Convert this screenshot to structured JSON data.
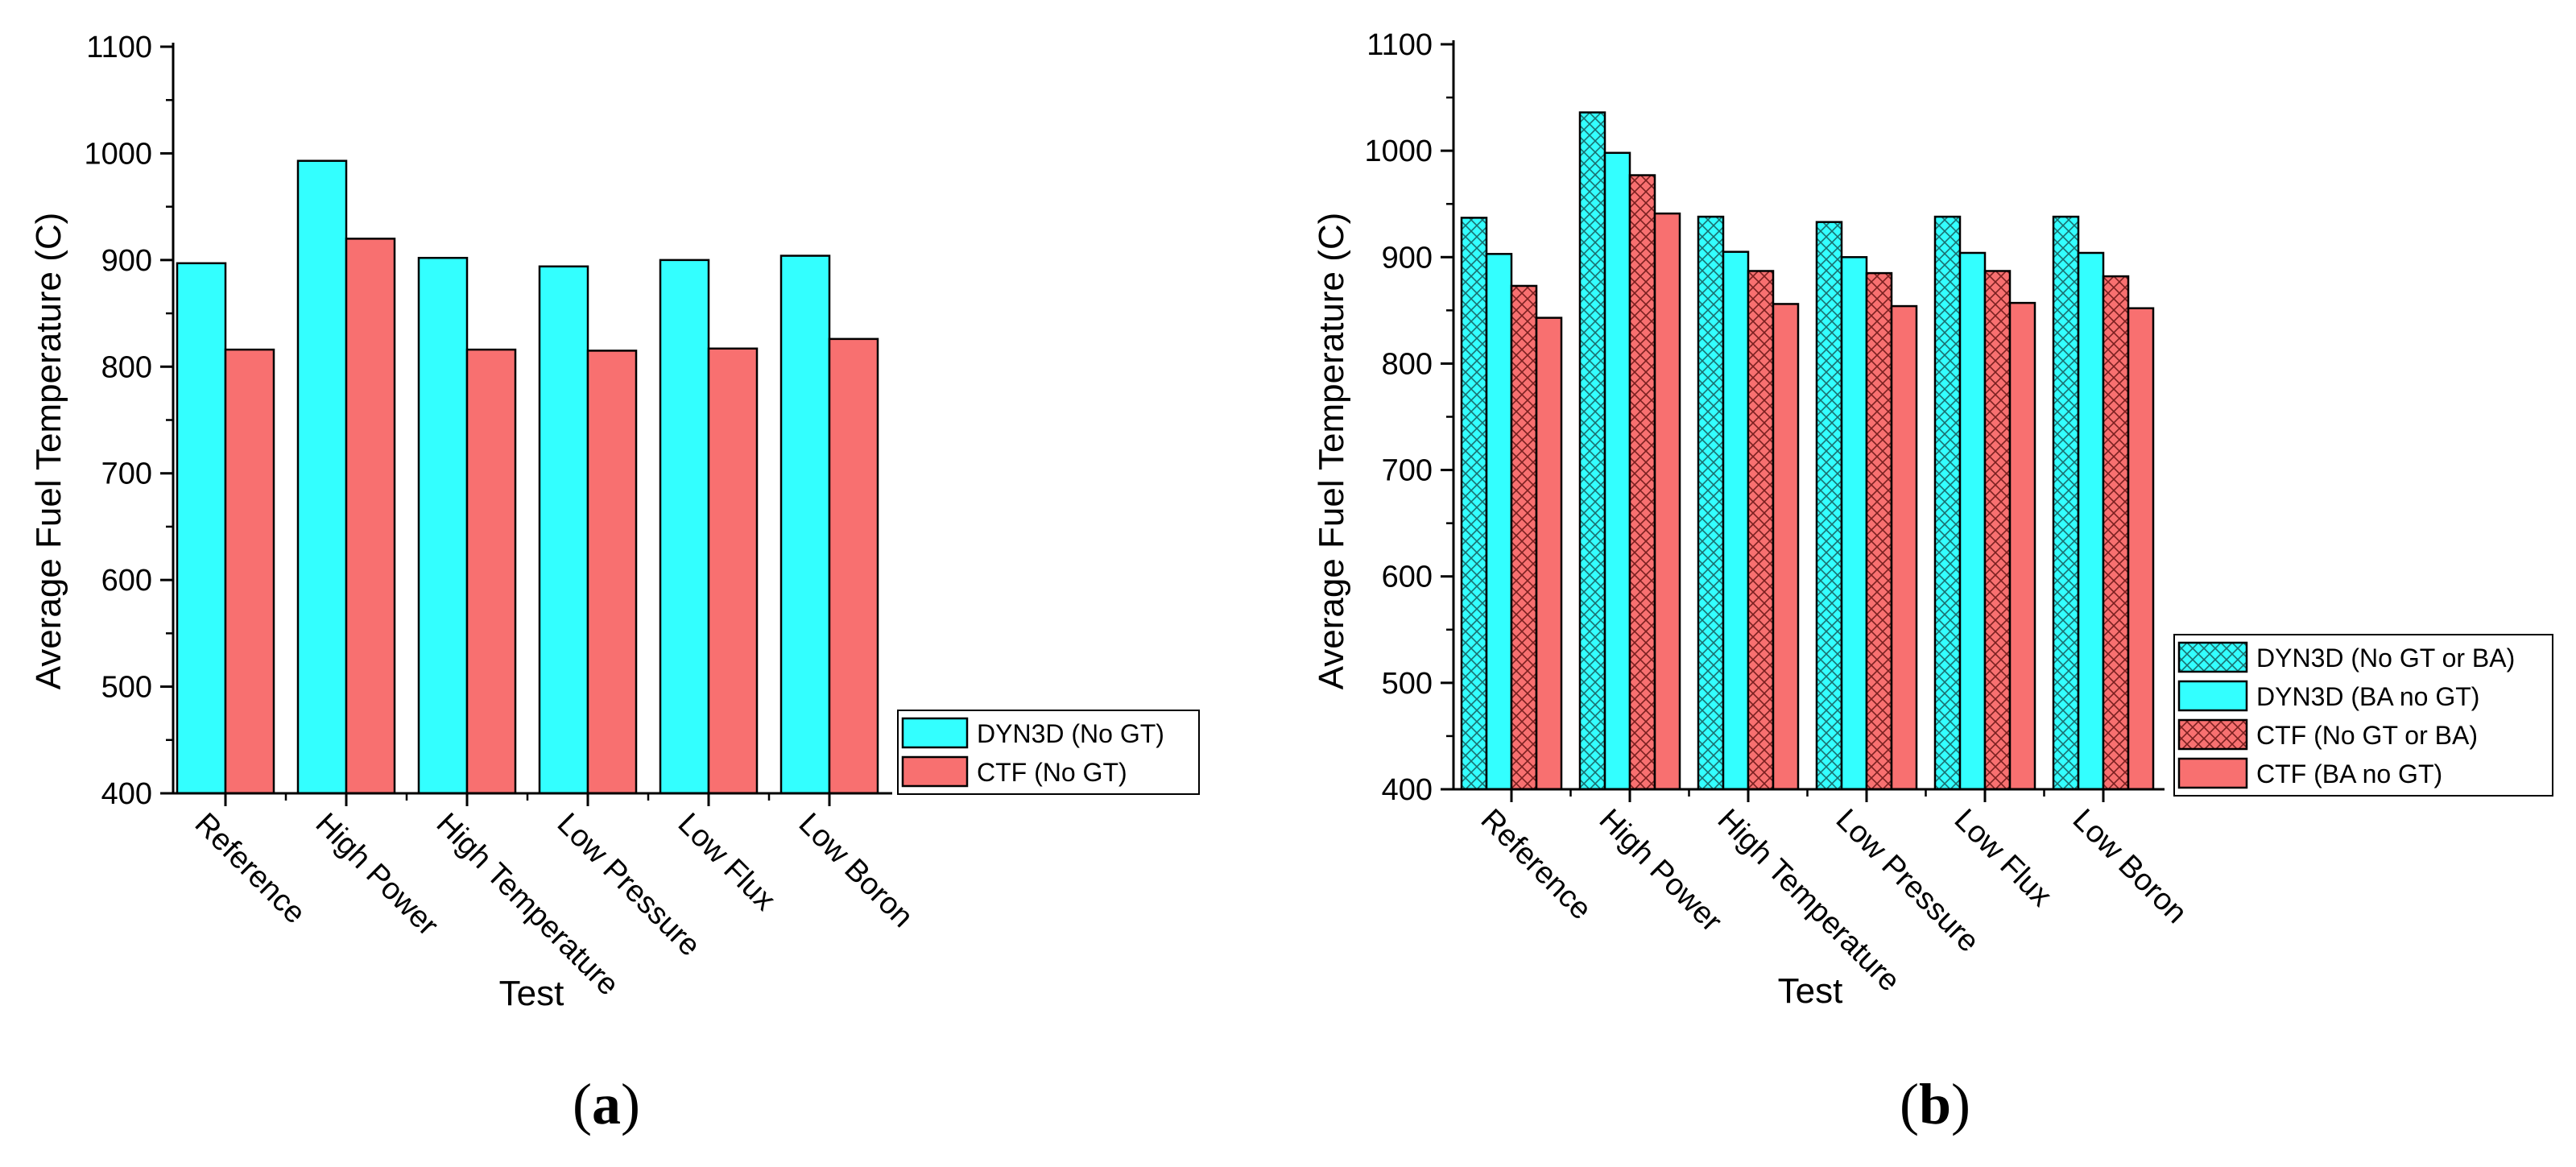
{
  "chart_data": [
    {
      "type": "bar",
      "panel": "a",
      "panel_label": "a",
      "xlabel": "Test",
      "ylabel": "Average Fuel Temperature (C)",
      "ylim": [
        400,
        1100
      ],
      "yticks": [
        400,
        500,
        600,
        700,
        800,
        900,
        1000,
        1100
      ],
      "categories": [
        "Reference",
        "High Power",
        "High Temperature",
        "Low Pressure",
        "Low Flux",
        "Low Boron"
      ],
      "series": [
        {
          "name": "DYN3D (No GT)",
          "color": "#33FFFF",
          "pattern": "solid",
          "values": [
            897,
            993,
            902,
            894,
            900,
            904
          ]
        },
        {
          "name": "CTF (No GT)",
          "color": "#F87070",
          "pattern": "solid",
          "values": [
            816,
            920,
            816,
            815,
            817,
            826
          ]
        }
      ],
      "legend": "right"
    },
    {
      "type": "bar",
      "panel": "b",
      "panel_label": "b",
      "xlabel": "Test",
      "ylabel": "Average Fuel Temperature (C)",
      "ylim": [
        400,
        1100
      ],
      "yticks": [
        400,
        500,
        600,
        700,
        800,
        900,
        1000,
        1100
      ],
      "categories": [
        "Reference",
        "High Power",
        "High Temperature",
        "Low Pressure",
        "Low Flux",
        "Low Boron"
      ],
      "series": [
        {
          "name": "DYN3D (No GT or BA)",
          "color": "#33FFFF",
          "pattern": "crosshatch",
          "values": [
            937,
            1036,
            938,
            933,
            938,
            938
          ]
        },
        {
          "name": "DYN3D (BA no GT)",
          "color": "#33FFFF",
          "pattern": "solid",
          "values": [
            903,
            998,
            905,
            900,
            904,
            904
          ]
        },
        {
          "name": "CTF (No GT or BA)",
          "color": "#F87070",
          "pattern": "crosshatch",
          "values": [
            873,
            977,
            887,
            885,
            887,
            882
          ]
        },
        {
          "name": "CTF (BA no GT)",
          "color": "#F87070",
          "pattern": "solid",
          "values": [
            843,
            941,
            856,
            854,
            857,
            852
          ]
        }
      ],
      "legend": "right"
    }
  ]
}
